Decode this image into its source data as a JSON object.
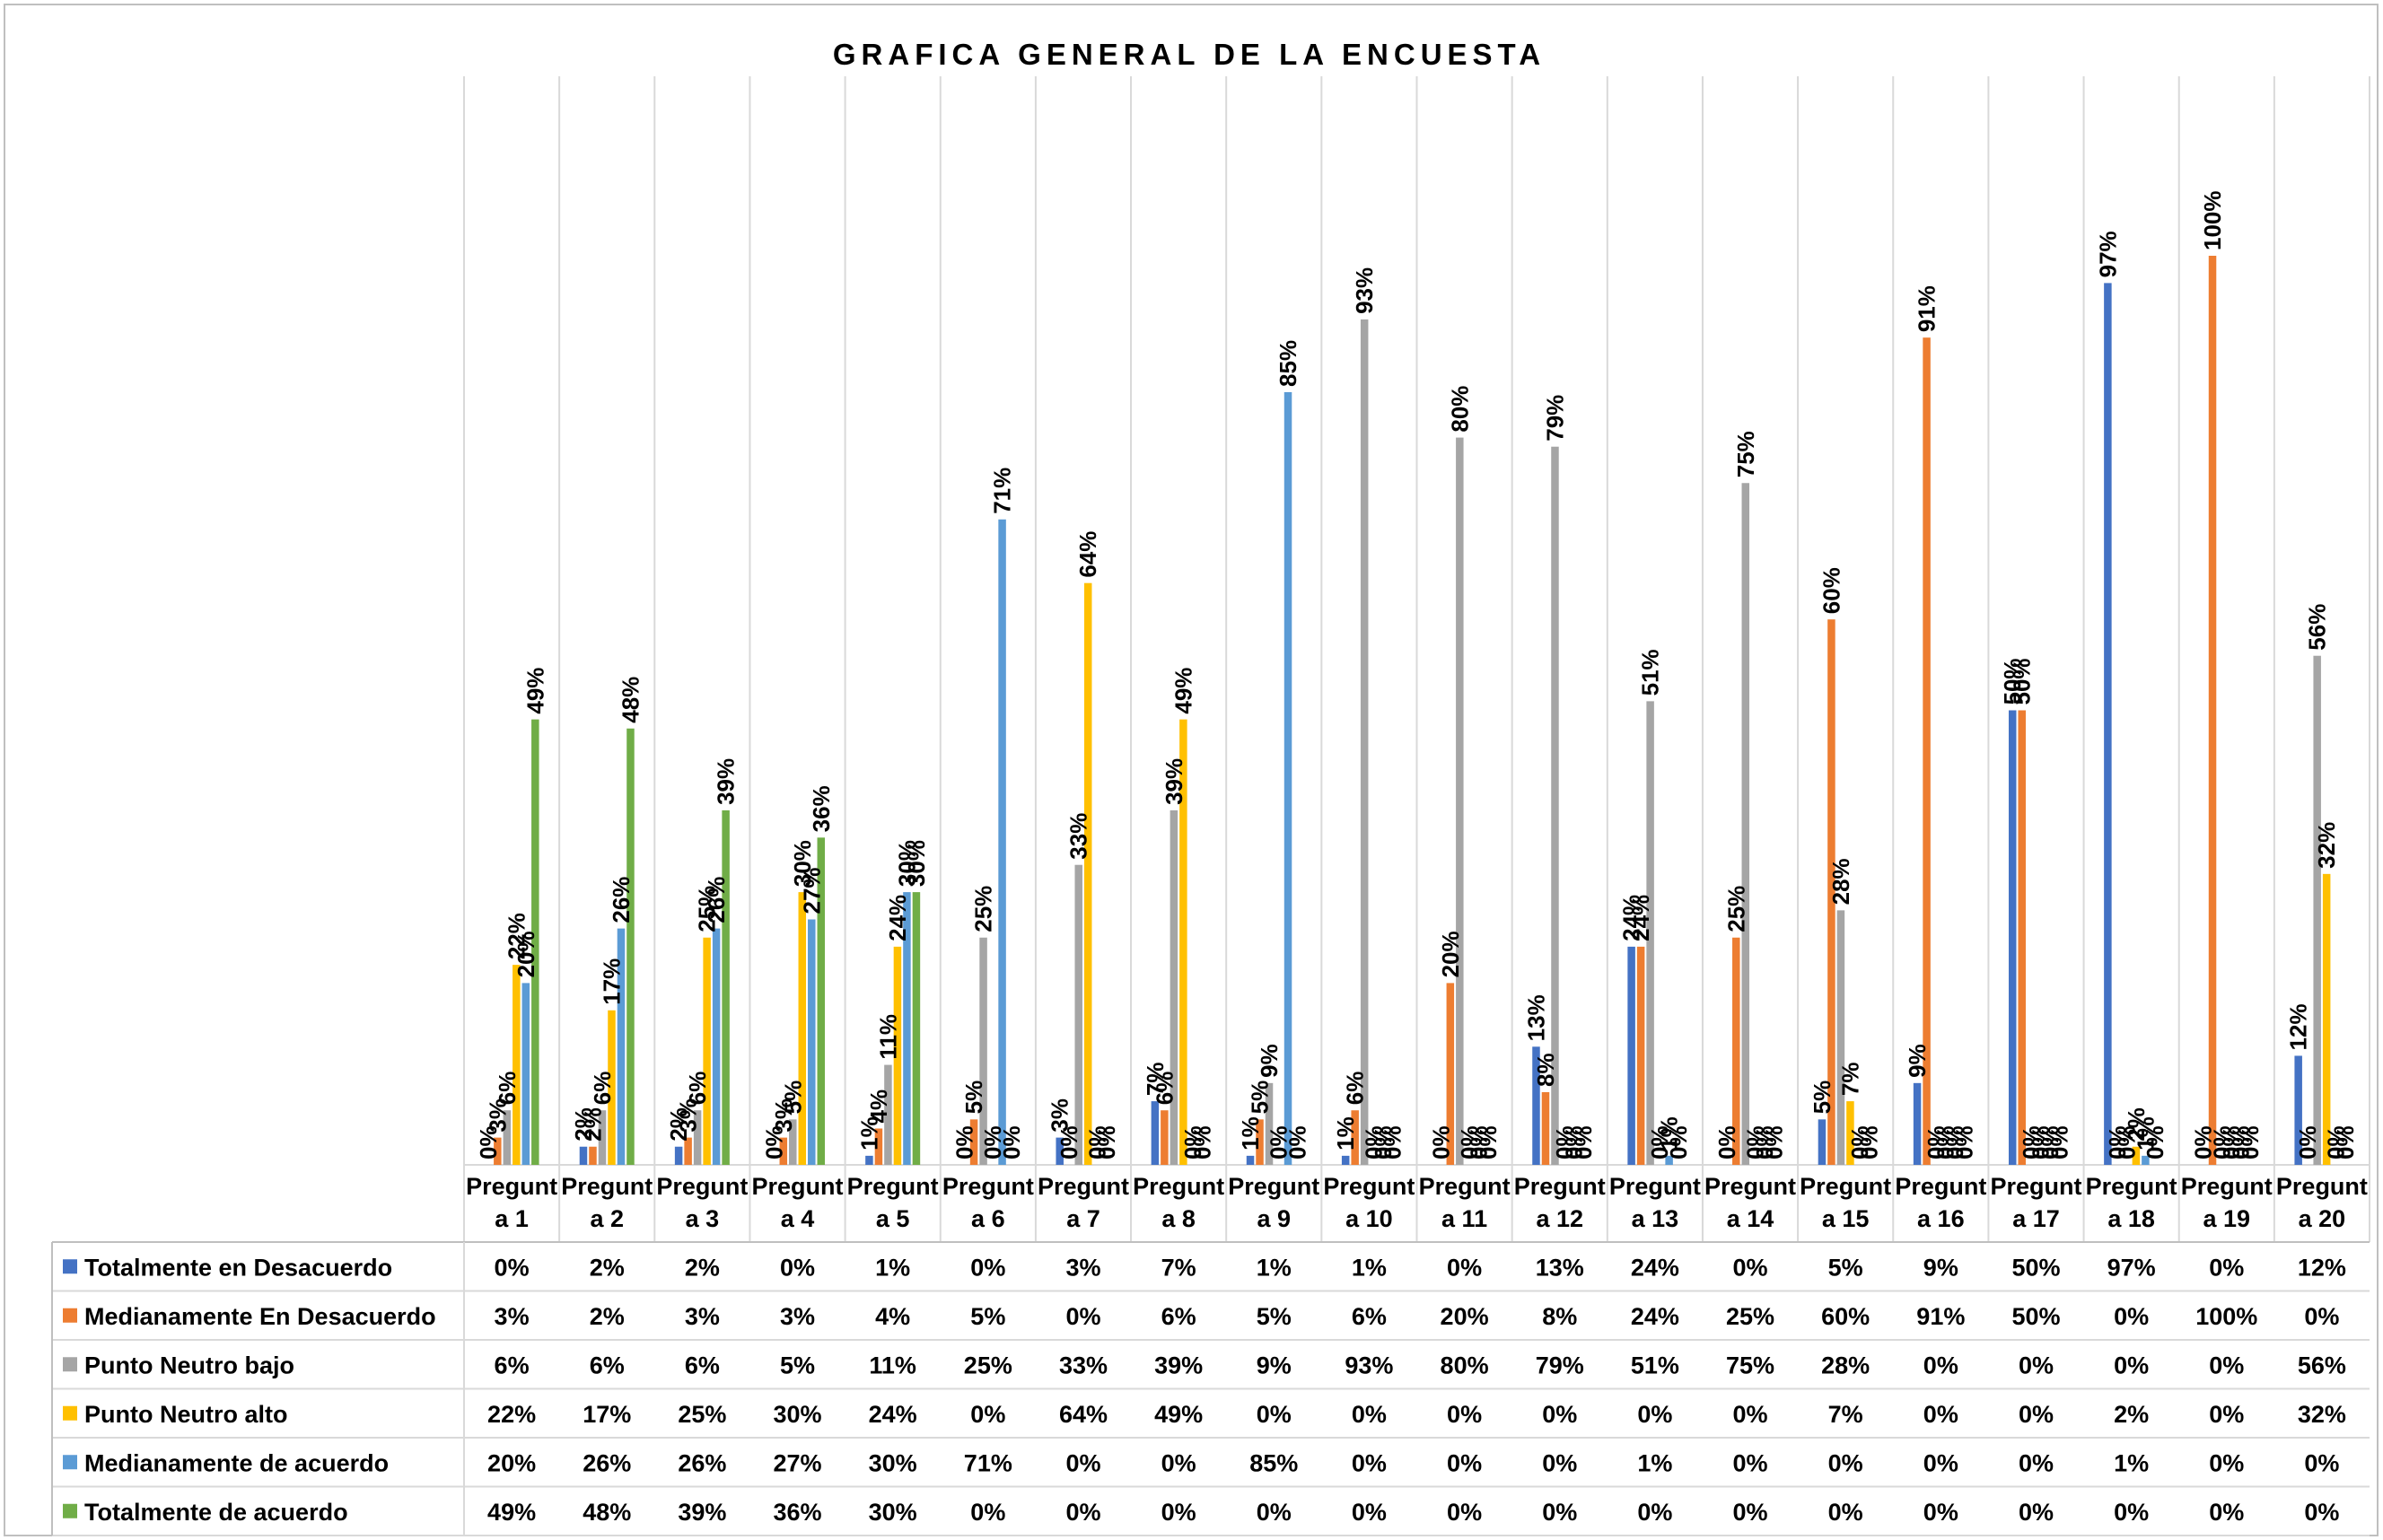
{
  "chart_data": {
    "type": "bar",
    "title": "GRAFICA GENERAL DE LA ENCUESTA",
    "xlabel": "",
    "ylabel": "",
    "ylim": [
      0,
      1
    ],
    "grid": "vertical category gridlines",
    "legend": "data table below chart",
    "value_format": "percent",
    "categories": [
      {
        "line1": "Pregunt",
        "line2": "a 1"
      },
      {
        "line1": "Pregunt",
        "line2": "a 2"
      },
      {
        "line1": "Pregunt",
        "line2": "a 3"
      },
      {
        "line1": "Pregunt",
        "line2": "a 4"
      },
      {
        "line1": "Pregunt",
        "line2": "a 5"
      },
      {
        "line1": "Pregunt",
        "line2": "a 6"
      },
      {
        "line1": "Pregunt",
        "line2": "a 7"
      },
      {
        "line1": "Pregunt",
        "line2": "a 8"
      },
      {
        "line1": "Pregunt",
        "line2": "a 9"
      },
      {
        "line1": "Pregunt",
        "line2": "a 10"
      },
      {
        "line1": "Pregunt",
        "line2": "a 11"
      },
      {
        "line1": "Pregunt",
        "line2": "a 12"
      },
      {
        "line1": "Pregunt",
        "line2": "a 13"
      },
      {
        "line1": "Pregunt",
        "line2": "a 14"
      },
      {
        "line1": "Pregunt",
        "line2": "a 15"
      },
      {
        "line1": "Pregunt",
        "line2": "a 16"
      },
      {
        "line1": "Pregunt",
        "line2": "a 17"
      },
      {
        "line1": "Pregunt",
        "line2": "a 18"
      },
      {
        "line1": "Pregunt",
        "line2": "a 19"
      },
      {
        "line1": "Pregunt",
        "line2": "a 20"
      }
    ],
    "series": [
      {
        "name": "Totalmente en Desacuerdo",
        "color": "#4472c4",
        "values": [
          0,
          0.02,
          0.02,
          0,
          0.01,
          0,
          0.03,
          0.07,
          0.01,
          0.01,
          0,
          0.13,
          0.24,
          0,
          0.05,
          0.09,
          0.5,
          0.97,
          0,
          0.12
        ],
        "labels": [
          "0%",
          "2%",
          "2%",
          "0%",
          "1%",
          "0%",
          "3%",
          "7%",
          "1%",
          "1%",
          "0%",
          "13%",
          "24%",
          "0%",
          "5%",
          "9%",
          "50%",
          "97%",
          "0%",
          "12%"
        ]
      },
      {
        "name": "Medianamente En Desacuerdo",
        "color": "#ed7d31",
        "values": [
          0.03,
          0.02,
          0.03,
          0.03,
          0.04,
          0.05,
          0,
          0.06,
          0.05,
          0.06,
          0.2,
          0.08,
          0.24,
          0.25,
          0.6,
          0.91,
          0.5,
          0,
          1.0,
          0
        ],
        "labels": [
          "3%",
          "2%",
          "3%",
          "3%",
          "4%",
          "5%",
          "0%",
          "6%",
          "5%",
          "6%",
          "20%",
          "8%",
          "24%",
          "25%",
          "60%",
          "91%",
          "50%",
          "0%",
          "100%",
          "0%"
        ]
      },
      {
        "name": "Punto Neutro bajo",
        "color": "#a5a5a5",
        "values": [
          0.06,
          0.06,
          0.06,
          0.05,
          0.11,
          0.25,
          0.33,
          0.39,
          0.09,
          0.93,
          0.8,
          0.79,
          0.51,
          0.75,
          0.28,
          0,
          0,
          0,
          0,
          0.56
        ],
        "labels": [
          "6%",
          "6%",
          "6%",
          "5%",
          "11%",
          "25%",
          "33%",
          "39%",
          "9%",
          "93%",
          "80%",
          "79%",
          "51%",
          "75%",
          "28%",
          "0%",
          "0%",
          "0%",
          "0%",
          "56%"
        ]
      },
      {
        "name": "Punto Neutro alto",
        "color": "#ffc000",
        "values": [
          0.22,
          0.17,
          0.25,
          0.3,
          0.24,
          0,
          0.64,
          0.49,
          0,
          0,
          0,
          0,
          0,
          0,
          0.07,
          0,
          0,
          0.02,
          0,
          0.32
        ],
        "labels": [
          "22%",
          "17%",
          "25%",
          "30%",
          "24%",
          "0%",
          "64%",
          "49%",
          "0%",
          "0%",
          "0%",
          "0%",
          "0%",
          "0%",
          "7%",
          "0%",
          "0%",
          "2%",
          "0%",
          "32%"
        ]
      },
      {
        "name": "Medianamente de acuerdo",
        "color": "#5b9bd5",
        "values": [
          0.2,
          0.26,
          0.26,
          0.27,
          0.3,
          0.71,
          0,
          0,
          0.85,
          0,
          0,
          0,
          0.01,
          0,
          0,
          0,
          0,
          0.01,
          0,
          0
        ],
        "labels": [
          "20%",
          "26%",
          "26%",
          "27%",
          "30%",
          "71%",
          "0%",
          "0%",
          "85%",
          "0%",
          "0%",
          "0%",
          "1%",
          "0%",
          "0%",
          "0%",
          "0%",
          "1%",
          "0%",
          "0%"
        ]
      },
      {
        "name": "Totalmente de  acuerdo",
        "color": "#70ad47",
        "values": [
          0.49,
          0.48,
          0.39,
          0.36,
          0.3,
          0,
          0,
          0,
          0,
          0,
          0,
          0,
          0,
          0,
          0,
          0,
          0,
          0,
          0,
          0
        ],
        "labels": [
          "49%",
          "48%",
          "39%",
          "36%",
          "30%",
          "0%",
          "0%",
          "0%",
          "0%",
          "0%",
          "0%",
          "0%",
          "0%",
          "0%",
          "0%",
          "0%",
          "0%",
          "0%",
          "0%",
          "0%"
        ]
      }
    ]
  }
}
